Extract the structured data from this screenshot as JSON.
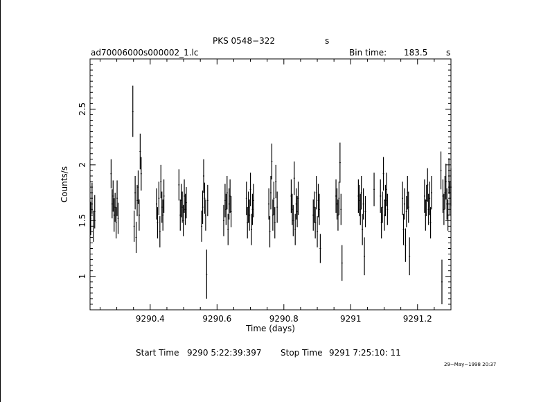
{
  "header": {
    "title": "PKS 0548−322",
    "title_unit": "s",
    "filename": "ad70006000s000002_1.lc",
    "bin_label": "Bin time:",
    "bin_value": "183.5",
    "bin_unit": "s"
  },
  "footer": {
    "start_label": "Start Time",
    "start_value": "9290  5:22:39:397",
    "stop_label": "Stop Time",
    "stop_value": "9291  7:25:10: 11",
    "stamp": "29−May−1998 20:37"
  },
  "chart_data": {
    "type": "scatter",
    "xlabel": "Time (days)",
    "ylabel": "Counts/s",
    "xlim": [
      9290.22,
      9291.3
    ],
    "ylim": [
      0.7,
      2.95
    ],
    "xticks": [
      9290.4,
      9290.6,
      9290.8,
      9291,
      9291.2
    ],
    "xtick_labels": [
      "9290.4",
      "9290.6",
      "9290.8",
      "9291",
      "9291.2"
    ],
    "yticks": [
      1,
      1.5,
      2,
      2.5
    ],
    "ytick_labels": [
      "1",
      "1.5",
      "2",
      "2.5"
    ],
    "grid": false,
    "series": [
      {
        "x": [
          9290.222,
          9290.226,
          9290.23,
          9290.234,
          9290.283,
          9290.286,
          9290.289,
          9290.292,
          9290.295,
          9290.298,
          9290.301,
          9290.304,
          9290.348,
          9290.352,
          9290.355,
          9290.358,
          9290.361,
          9290.364,
          9290.367,
          9290.37,
          9290.373,
          9290.419,
          9290.422,
          9290.426,
          9290.429,
          9290.432,
          9290.435,
          9290.438,
          9290.441,
          9290.486,
          9290.49,
          9290.493,
          9290.496,
          9290.499,
          9290.502,
          9290.505,
          9290.508,
          9290.554,
          9290.557,
          9290.56,
          9290.563,
          9290.566,
          9290.569,
          9290.572,
          9290.62,
          9290.624,
          9290.627,
          9290.63,
          9290.633,
          9290.636,
          9290.639,
          9290.642,
          9290.688,
          9290.691,
          9290.694,
          9290.697,
          9290.7,
          9290.703,
          9290.706,
          9290.709,
          9290.755,
          9290.758,
          9290.761,
          9290.764,
          9290.767,
          9290.77,
          9290.773,
          9290.776,
          9290.78,
          9290.822,
          9290.825,
          9290.828,
          9290.831,
          9290.834,
          9290.837,
          9290.84,
          9290.843,
          9290.888,
          9290.891,
          9290.894,
          9290.897,
          9290.9,
          9290.903,
          9290.906,
          9290.909,
          9290.956,
          9290.959,
          9290.962,
          9290.965,
          9290.968,
          9290.971,
          9290.974,
          9291.023,
          9291.026,
          9291.029,
          9291.032,
          9291.035,
          9291.038,
          9291.041,
          9291.044,
          9291.07,
          9291.089,
          9291.092,
          9291.095,
          9291.098,
          9291.101,
          9291.104,
          9291.107,
          9291.11,
          9291.155,
          9291.158,
          9291.161,
          9291.164,
          9291.167,
          9291.17,
          9291.173,
          9291.176,
          9291.221,
          9291.224,
          9291.227,
          9291.23,
          9291.233,
          9291.236,
          9291.239,
          9291.242,
          9291.27,
          9291.273,
          9291.276,
          9291.279,
          9291.282,
          9291.285,
          9291.288,
          9291.291,
          9291.294,
          9291.297,
          9291.3
        ],
        "y": [
          1.52,
          1.7,
          1.45,
          1.58,
          1.92,
          1.65,
          1.72,
          1.55,
          1.62,
          1.48,
          1.7,
          1.52,
          2.48,
          1.45,
          1.75,
          1.35,
          1.68,
          1.8,
          1.55,
          2.12,
          1.92,
          1.65,
          1.48,
          1.7,
          1.4,
          1.85,
          1.62,
          1.55,
          1.72,
          1.82,
          1.55,
          1.68,
          1.62,
          1.5,
          1.72,
          1.6,
          1.66,
          1.45,
          1.62,
          1.9,
          1.7,
          1.55,
          1.02,
          1.68,
          1.5,
          1.68,
          1.6,
          1.75,
          1.42,
          1.65,
          1.72,
          1.58,
          1.7,
          1.48,
          1.62,
          1.55,
          1.78,
          1.42,
          1.6,
          1.68,
          1.65,
          1.4,
          1.75,
          2.03,
          1.55,
          1.7,
          1.48,
          1.85,
          1.62,
          1.72,
          1.6,
          1.5,
          1.88,
          1.42,
          1.65,
          1.58,
          1.7,
          1.55,
          1.62,
          1.48,
          1.75,
          1.4,
          1.68,
          1.6,
          1.25,
          1.72,
          1.65,
          1.55,
          1.7,
          2.02,
          1.6,
          1.12,
          1.72,
          1.68,
          1.6,
          1.75,
          1.42,
          1.65,
          1.18,
          1.58,
          1.78,
          1.72,
          1.48,
          1.62,
          1.92,
          1.55,
          1.68,
          1.78,
          1.6,
          1.7,
          1.42,
          1.65,
          1.28,
          1.58,
          1.75,
          1.62,
          1.18,
          1.72,
          1.55,
          1.68,
          1.82,
          1.6,
          1.7,
          1.48,
          1.75,
          1.95,
          0.95,
          1.72,
          1.6,
          1.75,
          1.85,
          1.65,
          1.55,
          1.9,
          1.7,
          1.8
        ],
        "err": [
          0.15,
          0.14,
          0.14,
          0.15,
          0.13,
          0.13,
          0.14,
          0.15,
          0.13,
          0.14,
          0.16,
          0.14,
          0.23,
          0.14,
          0.15,
          0.14,
          0.14,
          0.15,
          0.14,
          0.16,
          0.15,
          0.14,
          0.14,
          0.15,
          0.14,
          0.15,
          0.14,
          0.14,
          0.15,
          0.14,
          0.14,
          0.15,
          0.14,
          0.14,
          0.15,
          0.14,
          0.14,
          0.14,
          0.15,
          0.15,
          0.14,
          0.14,
          0.22,
          0.14,
          0.14,
          0.15,
          0.14,
          0.15,
          0.14,
          0.14,
          0.15,
          0.14,
          0.15,
          0.14,
          0.14,
          0.14,
          0.15,
          0.14,
          0.14,
          0.15,
          0.14,
          0.14,
          0.15,
          0.16,
          0.14,
          0.15,
          0.14,
          0.15,
          0.14,
          0.15,
          0.14,
          0.14,
          0.15,
          0.14,
          0.14,
          0.14,
          0.15,
          0.14,
          0.14,
          0.14,
          0.15,
          0.14,
          0.15,
          0.14,
          0.13,
          0.15,
          0.14,
          0.14,
          0.15,
          0.18,
          0.14,
          0.16,
          0.15,
          0.14,
          0.14,
          0.15,
          0.14,
          0.14,
          0.17,
          0.14,
          0.15,
          0.15,
          0.14,
          0.14,
          0.15,
          0.14,
          0.14,
          0.15,
          0.14,
          0.15,
          0.14,
          0.14,
          0.15,
          0.14,
          0.15,
          0.14,
          0.17,
          0.15,
          0.14,
          0.14,
          0.15,
          0.14,
          0.15,
          0.14,
          0.15,
          0.17,
          0.2,
          0.15,
          0.14,
          0.15,
          0.16,
          0.14,
          0.14,
          0.16,
          0.15,
          0.17
        ]
      }
    ]
  }
}
